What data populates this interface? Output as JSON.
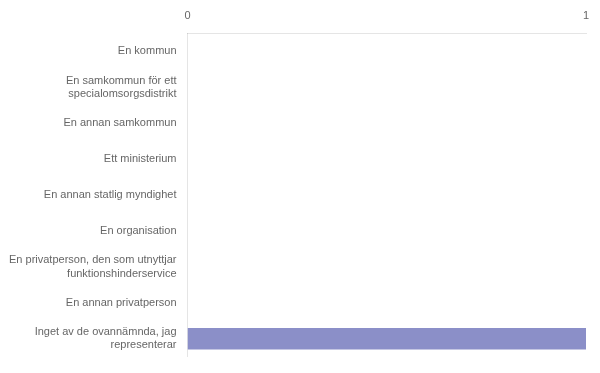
{
  "chart_data": {
    "type": "bar",
    "orientation": "horizontal",
    "categories": [
      "Inget av de ovannämnda, jag\nrepresenterar",
      "En annan privatperson",
      "En privatperson, den som utnyttjar\nfunktionshinderservice",
      "En organisation",
      "En annan statlig myndighet",
      "Ett ministerium",
      "En annan samkommun",
      "En samkommun för ett\nspecialomsorgsdistrikt",
      "En kommun"
    ],
    "values": [
      1,
      0,
      0,
      0,
      0,
      0,
      0,
      0,
      0
    ],
    "color": "#8b8fc8",
    "xlim": [
      0,
      1
    ],
    "xticks": [
      0,
      1
    ],
    "grid": false
  }
}
